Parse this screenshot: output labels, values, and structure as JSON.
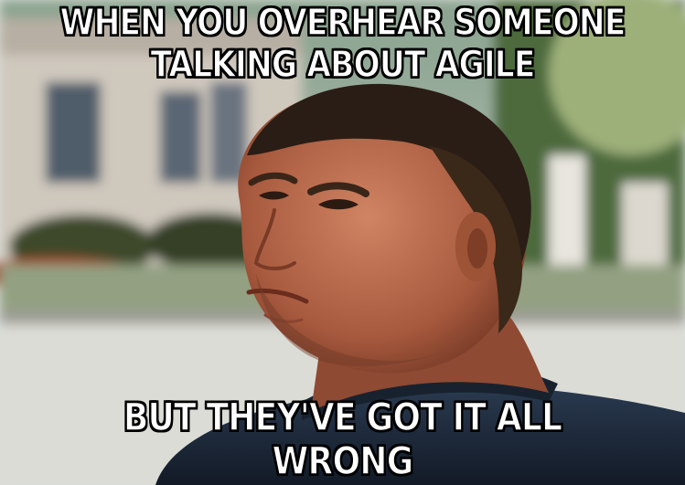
{
  "meme": {
    "top_text_line1": "WHEN YOU OVERHEAR SOMEONE",
    "top_text_line2": "TALKING ABOUT AGILE",
    "bottom_text": "BUT THEY'VE GOT IT ALL WRONG"
  },
  "colors": {
    "caption_fill": "#ffffff",
    "caption_outline": "#000000",
    "skin": "#b8684c",
    "hair": "#2a1d15",
    "jacket": "#1e2a3a",
    "background_house": "#c9c2b8"
  }
}
